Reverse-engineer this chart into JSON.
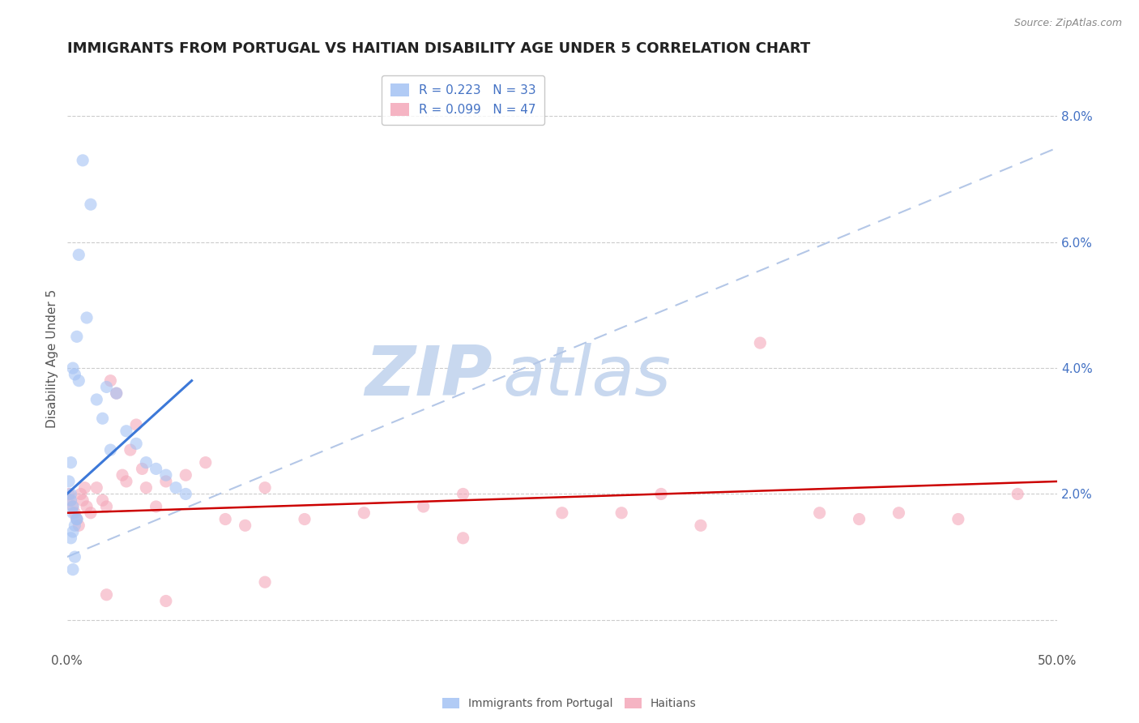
{
  "title": "IMMIGRANTS FROM PORTUGAL VS HAITIAN DISABILITY AGE UNDER 5 CORRELATION CHART",
  "source": "Source: ZipAtlas.com",
  "ylabel": "Disability Age Under 5",
  "legend_blue_r": "R = 0.223",
  "legend_blue_n": "N = 33",
  "legend_pink_r": "R = 0.099",
  "legend_pink_n": "N = 47",
  "legend_blue_label": "Immigrants from Portugal",
  "legend_pink_label": "Haitians",
  "blue_color": "#a4c2f4",
  "pink_color": "#f4a7b9",
  "blue_line_color": "#3c78d8",
  "pink_line_color": "#cc0000",
  "dashed_line_color": "#b4c7e7",
  "watermark_zip": "ZIP",
  "watermark_atlas": "atlas",
  "watermark_zip_color": "#c8d8ef",
  "watermark_atlas_color": "#c8d8ef",
  "xmin": 0.0,
  "xmax": 0.5,
  "ymin": -0.005,
  "ymax": 0.088,
  "yticks": [
    0.0,
    0.02,
    0.04,
    0.06,
    0.08
  ],
  "ytick_labels_right": [
    "",
    "2.0%",
    "4.0%",
    "6.0%",
    "8.0%"
  ],
  "xticks": [
    0.0,
    0.1,
    0.2,
    0.3,
    0.4,
    0.5
  ],
  "xtick_labels": [
    "0.0%",
    "",
    "",
    "",
    "",
    "50.0%"
  ],
  "blue_x": [
    0.008,
    0.012,
    0.006,
    0.01,
    0.005,
    0.003,
    0.002,
    0.001,
    0.002,
    0.004,
    0.006,
    0.015,
    0.02,
    0.018,
    0.025,
    0.022,
    0.03,
    0.035,
    0.04,
    0.045,
    0.05,
    0.055,
    0.06,
    0.003,
    0.005,
    0.003,
    0.004,
    0.002,
    0.003,
    0.005,
    0.002,
    0.004,
    0.003
  ],
  "blue_y": [
    0.073,
    0.066,
    0.058,
    0.048,
    0.045,
    0.04,
    0.025,
    0.022,
    0.02,
    0.039,
    0.038,
    0.035,
    0.037,
    0.032,
    0.036,
    0.027,
    0.03,
    0.028,
    0.025,
    0.024,
    0.023,
    0.021,
    0.02,
    0.017,
    0.016,
    0.014,
    0.015,
    0.019,
    0.018,
    0.016,
    0.013,
    0.01,
    0.008
  ],
  "pink_x": [
    0.001,
    0.002,
    0.003,
    0.004,
    0.005,
    0.006,
    0.007,
    0.008,
    0.009,
    0.01,
    0.012,
    0.015,
    0.018,
    0.02,
    0.022,
    0.025,
    0.028,
    0.03,
    0.032,
    0.035,
    0.038,
    0.04,
    0.045,
    0.05,
    0.06,
    0.07,
    0.08,
    0.09,
    0.1,
    0.12,
    0.15,
    0.18,
    0.2,
    0.25,
    0.28,
    0.3,
    0.32,
    0.35,
    0.38,
    0.4,
    0.42,
    0.45,
    0.48,
    0.02,
    0.05,
    0.1,
    0.2
  ],
  "pink_y": [
    0.02,
    0.019,
    0.018,
    0.017,
    0.016,
    0.015,
    0.02,
    0.019,
    0.021,
    0.018,
    0.017,
    0.021,
    0.019,
    0.018,
    0.038,
    0.036,
    0.023,
    0.022,
    0.027,
    0.031,
    0.024,
    0.021,
    0.018,
    0.022,
    0.023,
    0.025,
    0.016,
    0.015,
    0.021,
    0.016,
    0.017,
    0.018,
    0.02,
    0.017,
    0.017,
    0.02,
    0.015,
    0.044,
    0.017,
    0.016,
    0.017,
    0.016,
    0.02,
    0.004,
    0.003,
    0.006,
    0.013
  ],
  "blue_line_x": [
    0.0,
    0.063
  ],
  "blue_line_y": [
    0.02,
    0.038
  ],
  "pink_line_x": [
    0.0,
    0.5
  ],
  "pink_line_y": [
    0.017,
    0.022
  ],
  "dashed_line_x": [
    0.0,
    0.5
  ],
  "dashed_line_y": [
    0.01,
    0.075
  ],
  "background_color": "#ffffff",
  "grid_color": "#cccccc",
  "title_fontsize": 13,
  "axis_label_fontsize": 11,
  "tick_fontsize": 11,
  "legend_fontsize": 11,
  "dot_size": 120,
  "dot_alpha": 0.6,
  "dot_linewidth": 0
}
